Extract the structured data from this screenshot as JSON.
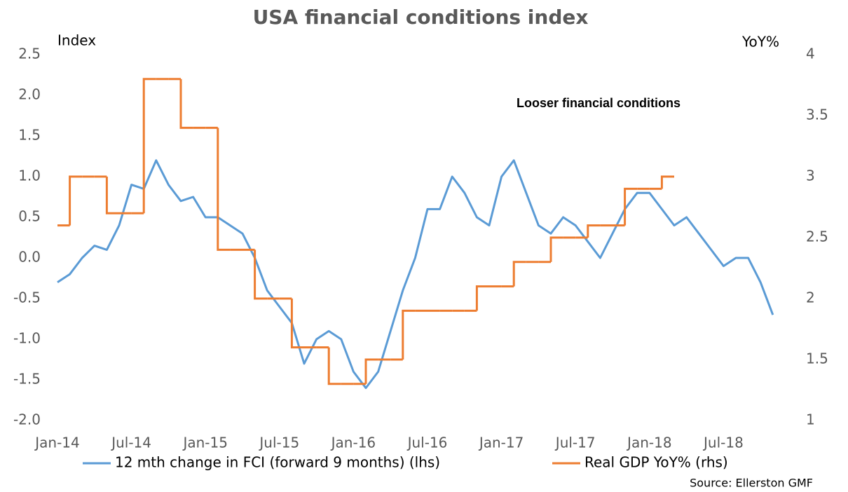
{
  "chart_data": {
    "type": "line",
    "title": "USA financial conditions index",
    "y_label": "Index",
    "y2_label": "YoY%",
    "annotation": "Looser financial conditions",
    "source": "Source: Ellerston GMF",
    "x": [
      "Jan-14",
      null,
      null,
      null,
      null,
      null,
      "Jul-14",
      null,
      null,
      null,
      null,
      null,
      "Jan-15",
      null,
      null,
      null,
      null,
      null,
      "Jul-15",
      null,
      null,
      null,
      null,
      null,
      "Jan-16",
      null,
      null,
      null,
      null,
      null,
      "Jul-16",
      null,
      null,
      null,
      null,
      null,
      "Jan-17",
      null,
      null,
      null,
      null,
      null,
      "Jul-17",
      null,
      null,
      null,
      null,
      null,
      "Jan-18",
      null,
      null,
      null,
      null,
      null,
      "Jul-18",
      null,
      null,
      null,
      null,
      null
    ],
    "series": [
      {
        "name": "12 mth change in FCI (forward 9 months) (lhs)",
        "color": "#5b9bd5",
        "axis": "y",
        "values": [
          -0.3,
          -0.2,
          0.0,
          0.15,
          0.1,
          0.4,
          0.9,
          0.85,
          1.2,
          0.9,
          0.7,
          0.75,
          0.5,
          0.5,
          0.4,
          0.3,
          0.0,
          -0.4,
          -0.6,
          -0.8,
          -1.3,
          -1.0,
          -0.9,
          -1.0,
          -1.4,
          -1.6,
          -1.4,
          -0.9,
          -0.4,
          0.0,
          0.6,
          0.6,
          1.0,
          0.8,
          0.5,
          0.4,
          1.0,
          1.2,
          0.8,
          0.4,
          0.3,
          0.5,
          0.4,
          0.2,
          0.0,
          0.3,
          0.6,
          0.8,
          0.8,
          0.6,
          0.4,
          0.5,
          0.3,
          0.1,
          -0.1,
          0.0,
          0.0,
          -0.3,
          -0.7,
          null
        ]
      },
      {
        "name": "Real GDP YoY% (rhs)",
        "color": "#ed7d31",
        "axis": "y2",
        "step": true,
        "values": [
          2.6,
          3.0,
          3.0,
          3.0,
          2.7,
          2.7,
          2.7,
          3.8,
          3.8,
          3.8,
          3.4,
          3.4,
          3.4,
          2.4,
          2.4,
          2.4,
          2.0,
          2.0,
          2.0,
          1.6,
          1.6,
          1.6,
          1.3,
          1.3,
          1.3,
          1.5,
          1.5,
          1.5,
          1.9,
          1.9,
          1.9,
          1.9,
          1.9,
          1.9,
          2.1,
          2.1,
          2.1,
          2.3,
          2.3,
          2.3,
          2.5,
          2.5,
          2.5,
          2.6,
          2.6,
          2.6,
          2.9,
          2.9,
          2.9,
          3.0,
          null,
          null,
          null,
          null,
          null,
          null,
          null,
          null,
          null,
          null
        ]
      }
    ],
    "ylim": [
      -2,
      2.5
    ],
    "yticks": [
      {
        "value": -2,
        "label": "-2.0"
      },
      -1.5,
      {
        "value": -1,
        "label": "-1.0"
      },
      -0.5,
      {
        "value": 0,
        "label": "0.0"
      },
      0.5,
      {
        "value": 1,
        "label": "1.0"
      },
      1.5,
      {
        "value": 2,
        "label": "2.0"
      },
      2.5
    ],
    "y2lim": [
      1,
      4
    ],
    "y2ticks": [
      1,
      1.5,
      2,
      2.5,
      3,
      3.5,
      4
    ],
    "grid": false,
    "legend": "bottom"
  }
}
